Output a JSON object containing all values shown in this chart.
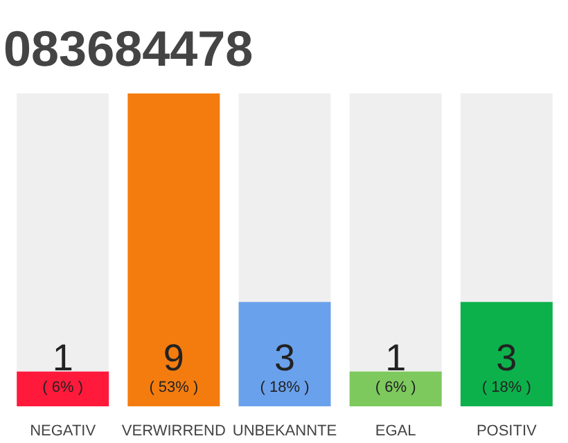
{
  "chart_data": {
    "type": "bar",
    "title": "083684478",
    "categories": [
      "NEGATIV",
      "VERWIRREND",
      "UNBEKANNTE",
      "EGAL",
      "POSITIV"
    ],
    "values": [
      1,
      9,
      3,
      1,
      3
    ],
    "colors": [
      "#ff1a3c",
      "#f47c0e",
      "#6aa1ec",
      "#7dc95e",
      "#0db14b"
    ],
    "data_labels": true,
    "annotations": [
      "( 6% )",
      "( 53% )",
      "( 18% )",
      "( 6% )",
      "( 18% )"
    ],
    "grid": false
  }
}
